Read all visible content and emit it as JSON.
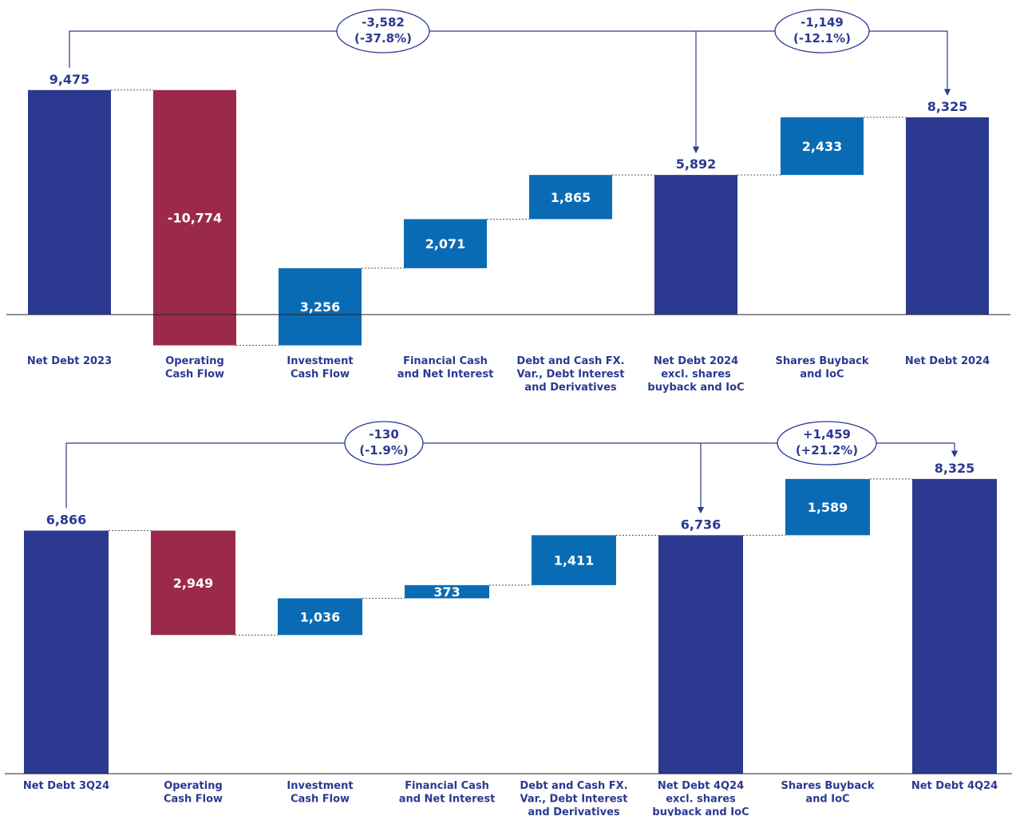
{
  "colors": {
    "total": "#2b3990",
    "increase": "#0a6bb5",
    "decrease": "#9b2a4a",
    "text": "#2b3990",
    "connector": "#555555"
  },
  "chart_data": [
    {
      "type": "bar",
      "subtype": "waterfall",
      "categories": [
        [
          "Net Debt 2023"
        ],
        [
          "Operating",
          "Cash Flow"
        ],
        [
          "Investment",
          "Cash Flow"
        ],
        [
          "Financial Cash",
          "and Net Interest"
        ],
        [
          "Debt and Cash FX.",
          "Var., Debt Interest",
          "and Derivatives"
        ],
        [
          "Net Debt 2024",
          "excl. shares",
          "buyback and IoC"
        ],
        [
          "Shares Buyback",
          "and IoC"
        ],
        [
          "Net Debt 2024"
        ]
      ],
      "bars": [
        {
          "kind": "total",
          "start": 0,
          "end": 9475,
          "label": "9,475"
        },
        {
          "kind": "decrease",
          "start": 9475,
          "end": -1299,
          "label": "-10,774"
        },
        {
          "kind": "increase",
          "start": -1299,
          "end": 1957,
          "label": "3,256"
        },
        {
          "kind": "increase",
          "start": 1957,
          "end": 4028,
          "label": "2,071"
        },
        {
          "kind": "increase",
          "start": 4028,
          "end": 5892,
          "label": "1,865"
        },
        {
          "kind": "total",
          "start": 0,
          "end": 5892,
          "label": "5,892"
        },
        {
          "kind": "increase",
          "start": 5892,
          "end": 8325,
          "label": "2,433"
        },
        {
          "kind": "total",
          "start": 0,
          "end": 8325,
          "label": "8,325"
        }
      ],
      "ylim": [
        -1500,
        12000
      ],
      "variations": [
        {
          "line1": "-3,582",
          "line2": "(-37.8%)",
          "from": 0,
          "to": 5
        },
        {
          "line1": "-1,149",
          "line2": "(-12.1%)",
          "from": 5,
          "to": 7
        }
      ]
    },
    {
      "type": "bar",
      "subtype": "waterfall",
      "categories": [
        [
          "Net Debt 3Q24"
        ],
        [
          "Operating",
          "Cash Flow"
        ],
        [
          "Investment",
          "Cash Flow"
        ],
        [
          "Financial Cash",
          "and Net Interest"
        ],
        [
          "Debt and Cash FX.",
          "Var., Debt Interest",
          "and Derivatives"
        ],
        [
          "Net Debt 4Q24",
          "excl. shares",
          "buyback and IoC"
        ],
        [
          "Shares Buyback",
          "and IoC"
        ],
        [
          "Net Debt 4Q24"
        ]
      ],
      "bars": [
        {
          "kind": "total",
          "start": 0,
          "end": 6866,
          "label": "6,866"
        },
        {
          "kind": "decrease",
          "start": 6866,
          "end": 3917,
          "label": "2,949"
        },
        {
          "kind": "increase",
          "start": 3917,
          "end": 4953,
          "label": "1,036"
        },
        {
          "kind": "increase",
          "start": 4953,
          "end": 5326,
          "label": "373"
        },
        {
          "kind": "increase",
          "start": 5326,
          "end": 6736,
          "label": "1,411"
        },
        {
          "kind": "total",
          "start": 0,
          "end": 6736,
          "label": "6,736"
        },
        {
          "kind": "increase",
          "start": 6736,
          "end": 8325,
          "label": "1,589"
        },
        {
          "kind": "total",
          "start": 0,
          "end": 8325,
          "label": "8,325"
        }
      ],
      "ylim": [
        0,
        10000
      ],
      "variations": [
        {
          "line1": "-130",
          "line2": "(-1.9%)",
          "from": 0,
          "to": 5
        },
        {
          "line1": "+1,459",
          "line2": "(+21.2%)",
          "from": 5,
          "to": 7
        }
      ]
    }
  ]
}
